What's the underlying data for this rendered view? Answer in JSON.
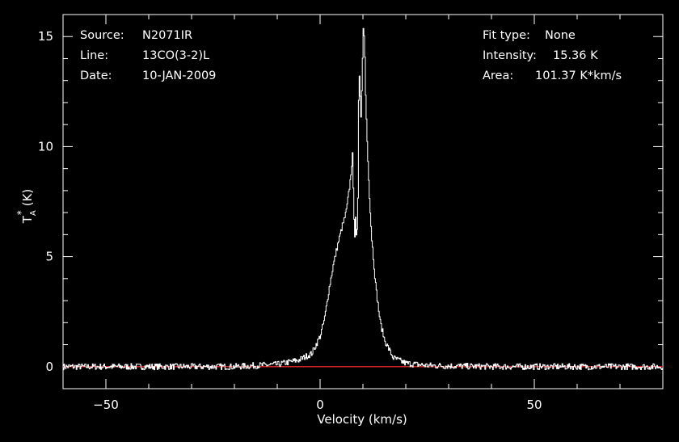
{
  "header": {
    "source_label": "Source:",
    "source_value": "N2071IR",
    "line_label": "Line:",
    "line_value": "13CO(3-2)L",
    "date_label": "Date:",
    "date_value": "10-JAN-2009",
    "fit_label": "Fit type:",
    "fit_value": "None",
    "intensity_label": "Intensity:",
    "intensity_value": "15.36 K",
    "area_label": "Area:",
    "area_value": "101.37 K*km/s"
  },
  "chart_data": {
    "type": "line",
    "xlabel": "Velocity (km/s)",
    "ylabel_main": "T",
    "ylabel_sup": "*",
    "ylabel_sub": "A",
    "ylabel_unit": "(K)",
    "xlim": [
      -60,
      80
    ],
    "ylim": [
      -1,
      16
    ],
    "xticks": [
      -50,
      0,
      50
    ],
    "xtick_labels": [
      "−50",
      "0",
      "50"
    ],
    "yticks": [
      0,
      5,
      10,
      15
    ],
    "ytick_labels": [
      "0",
      "5",
      "10",
      "15"
    ],
    "baseline": 0,
    "grid": false,
    "colors": {
      "spectrum": "#ffffff",
      "baseline": "#cc2222",
      "axes": "#ffffff",
      "background": "#000000"
    },
    "series": [
      {
        "x": [
          -60,
          -40,
          -20,
          -10,
          -5,
          -2,
          0,
          1,
          2,
          3,
          4,
          5,
          6,
          6.5,
          7,
          7.5,
          8,
          8.2,
          8.5,
          8.8,
          9,
          9.5,
          10,
          10.3,
          10.6,
          11,
          11.5,
          12,
          13,
          14,
          15,
          17,
          20,
          25,
          40,
          60,
          80
        ],
        "y": [
          0,
          0,
          0,
          0.1,
          0.3,
          0.6,
          1.4,
          2.2,
          3.5,
          4.6,
          5.5,
          6.3,
          7.0,
          7.7,
          8.5,
          9.6,
          5.6,
          6.9,
          5.6,
          8.0,
          13.9,
          11.2,
          15.36,
          14.8,
          12.0,
          9.8,
          7.5,
          5.8,
          3.5,
          2.0,
          1.2,
          0.4,
          0.15,
          0.05,
          0,
          0,
          0
        ]
      }
    ]
  }
}
